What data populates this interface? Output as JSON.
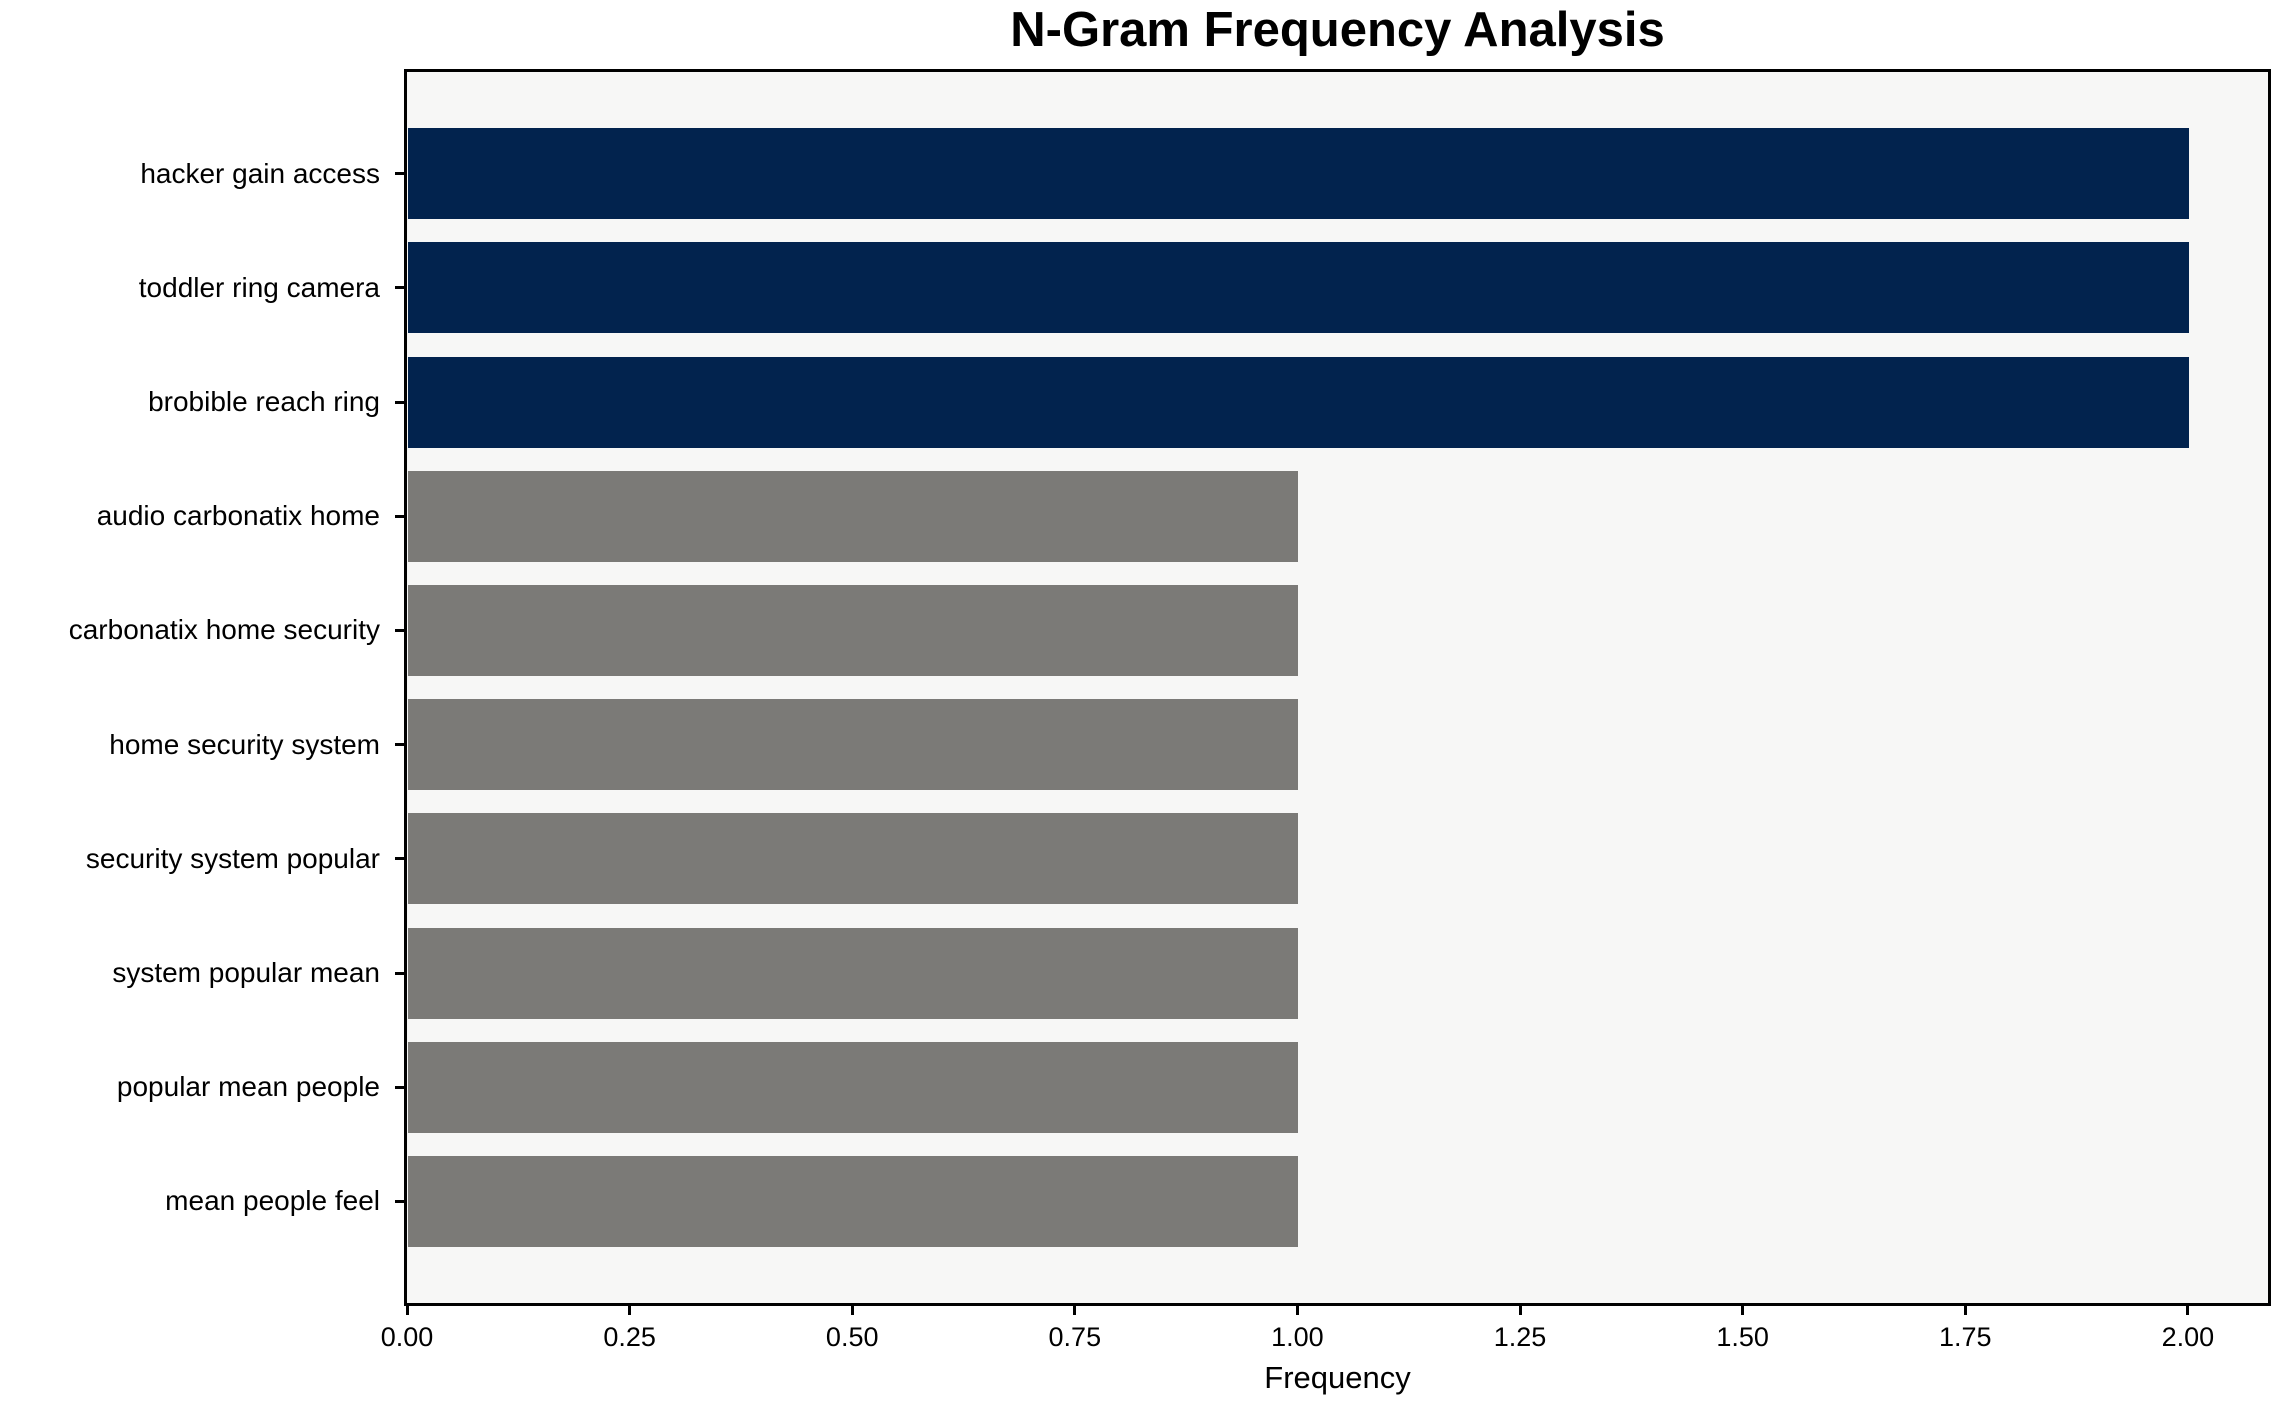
{
  "chart_data": {
    "type": "bar",
    "orientation": "horizontal",
    "title": "N-Gram Frequency Analysis",
    "xlabel": "Frequency",
    "ylabel": "",
    "categories": [
      "hacker gain access",
      "toddler ring camera",
      "brobible reach ring",
      "audio carbonatix home",
      "carbonatix home security",
      "home security system",
      "security system popular",
      "system popular mean",
      "popular mean people",
      "mean people feel"
    ],
    "values": [
      2,
      2,
      2,
      1,
      1,
      1,
      1,
      1,
      1,
      1
    ],
    "bar_colors": [
      "#02234e",
      "#02234e",
      "#02234e",
      "#7b7a77",
      "#7b7a77",
      "#7b7a77",
      "#7b7a77",
      "#7b7a77",
      "#7b7a77",
      "#7b7a77"
    ],
    "xlim": [
      0,
      2.09
    ],
    "xticks": [
      {
        "value": 0.0,
        "label": "0.00"
      },
      {
        "value": 0.25,
        "label": "0.25"
      },
      {
        "value": 0.5,
        "label": "0.50"
      },
      {
        "value": 0.75,
        "label": "0.75"
      },
      {
        "value": 1.0,
        "label": "1.00"
      },
      {
        "value": 1.25,
        "label": "1.25"
      },
      {
        "value": 1.5,
        "label": "1.50"
      },
      {
        "value": 1.75,
        "label": "1.75"
      },
      {
        "value": 2.0,
        "label": "2.00"
      }
    ],
    "grid": false,
    "legend_position": "none",
    "colors": {
      "highlight_bar": "#02234e",
      "default_bar": "#7b7a77",
      "plot_background": "#f7f7f6",
      "figure_background": "#ffffff",
      "spine": "#000000",
      "text": "#000000"
    }
  }
}
